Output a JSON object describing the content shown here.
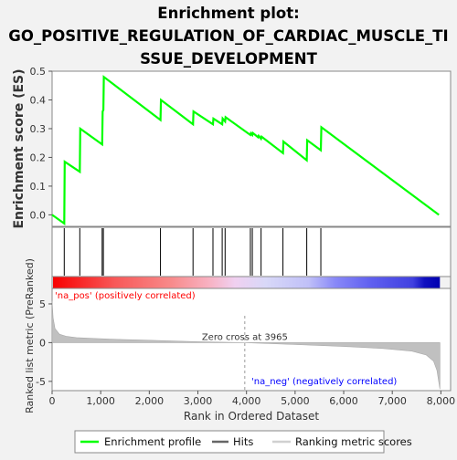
{
  "title_lines": [
    "Enrichment plot:",
    "GO_POSITIVE_REGULATION_OF_CARDIAC_MUSCLE_TI",
    "SSUE_DEVELOPMENT"
  ],
  "colors": {
    "enrichment": "#00ff00",
    "hits": "#000000",
    "metric_fill": "#c0c0c0",
    "pos_label": "#ff0000",
    "neg_label": "#0000ff"
  },
  "chart_data": {
    "type": "line",
    "title": "Enrichment plot: GO_POSITIVE_REGULATION_OF_CARDIAC_MUSCLE_TISSUE_DEVELOPMENT",
    "xlabel": "Rank in Ordered Dataset",
    "xlim": [
      0,
      8200
    ],
    "x_ticks": [
      "0",
      "1,000",
      "2,000",
      "3,000",
      "4,000",
      "5,000",
      "6,000",
      "7,000",
      "8,000"
    ],
    "x_tick_values": [
      0,
      1000,
      2000,
      3000,
      4000,
      5000,
      6000,
      7000,
      8000
    ],
    "es_panel": {
      "ylabel": "Enrichment score (ES)",
      "ylim": [
        -0.04,
        0.5
      ],
      "y_ticks": [
        "0.0",
        "0.1",
        "0.2",
        "0.3",
        "0.4",
        "0.5"
      ],
      "y_tick_values": [
        0.0,
        0.1,
        0.2,
        0.3,
        0.4,
        0.5
      ],
      "series": [
        {
          "name": "Enrichment profile",
          "x": [
            0,
            250,
            260,
            570,
            580,
            1030,
            1040,
            1055,
            1065,
            2230,
            2240,
            2900,
            2910,
            3310,
            3320,
            3500,
            3510,
            3560,
            3570,
            4080,
            4090,
            4120,
            4130,
            4240,
            4250,
            4300,
            4310,
            4750,
            4760,
            5240,
            5250,
            5530,
            5540,
            7960
          ],
          "y": [
            0.0,
            -0.03,
            0.185,
            0.15,
            0.3,
            0.245,
            0.36,
            0.365,
            0.48,
            0.33,
            0.4,
            0.315,
            0.36,
            0.315,
            0.335,
            0.315,
            0.335,
            0.325,
            0.34,
            0.278,
            0.284,
            0.278,
            0.285,
            0.27,
            0.275,
            0.265,
            0.272,
            0.215,
            0.255,
            0.19,
            0.26,
            0.225,
            0.305,
            0.0
          ]
        }
      ]
    },
    "hits": {
      "name": "Hits",
      "x": [
        250,
        570,
        1030,
        1055,
        2230,
        2900,
        3310,
        3500,
        3560,
        4080,
        4120,
        4300,
        4750,
        5240,
        5530
      ]
    },
    "metric_panel": {
      "ylabel": "Ranked list metric (PreRanked)",
      "ylim": [
        -6.2,
        7
      ],
      "y_ticks": [
        "-5",
        "0",
        "5"
      ],
      "y_tick_values": [
        -5,
        0,
        5
      ],
      "series": [
        {
          "name": "Ranking metric scores",
          "x": [
            0,
            20,
            60,
            150,
            300,
            500,
            800,
            1200,
            2000,
            3000,
            3965,
            5000,
            6000,
            6800,
            7400,
            7700,
            7850,
            7920,
            7960,
            7980
          ],
          "y": [
            5.4,
            3.2,
            1.8,
            1.1,
            0.8,
            0.65,
            0.55,
            0.45,
            0.3,
            0.12,
            0.0,
            -0.25,
            -0.5,
            -0.75,
            -1.1,
            -1.6,
            -2.4,
            -3.6,
            -5.2,
            -6.0
          ]
        }
      ],
      "zero_cross": 3965,
      "zero_cross_label": "Zero cross at 3965",
      "pos_label": "'na_pos' (positively correlated)",
      "neg_label": "'na_neg' (negatively correlated)"
    },
    "legend": {
      "placement": "bottom",
      "items": [
        "Enrichment profile",
        "Hits",
        "Ranking metric scores"
      ]
    }
  }
}
